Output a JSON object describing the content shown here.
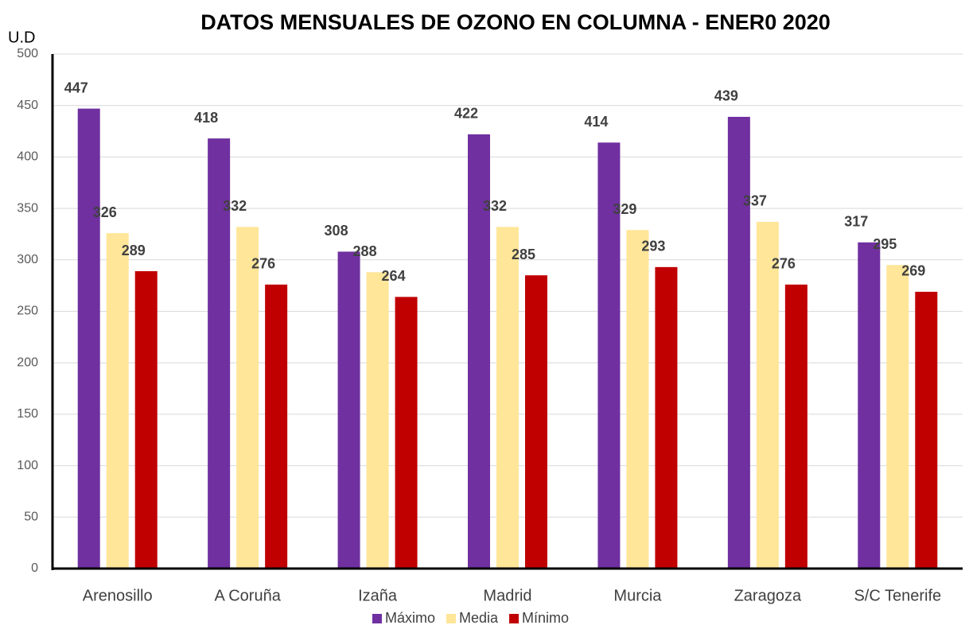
{
  "chart_data": {
    "type": "bar",
    "title": "DATOS MENSUALES DE OZONO EN COLUMNA - ENER0 2020",
    "y_label": "U.D",
    "categories": [
      "Arenosillo",
      "A Coruña",
      "Izaña",
      "Madrid",
      "Murcia",
      "Zaragoza",
      "S/C Tenerife"
    ],
    "series": [
      {
        "name": "Máximo",
        "color": "#7030a0",
        "values": [
          447,
          418,
          308,
          422,
          414,
          439,
          317
        ]
      },
      {
        "name": "Media",
        "color": "#ffe699",
        "values": [
          326,
          332,
          288,
          332,
          329,
          337,
          295
        ]
      },
      {
        "name": "Mínimo",
        "color": "#c00000",
        "values": [
          289,
          276,
          264,
          285,
          293,
          276,
          269
        ]
      }
    ],
    "ylim": [
      0,
      500
    ],
    "yticks": [
      0,
      50,
      100,
      150,
      200,
      250,
      300,
      350,
      400,
      450,
      500
    ],
    "grid": true,
    "legend": "bottom"
  }
}
